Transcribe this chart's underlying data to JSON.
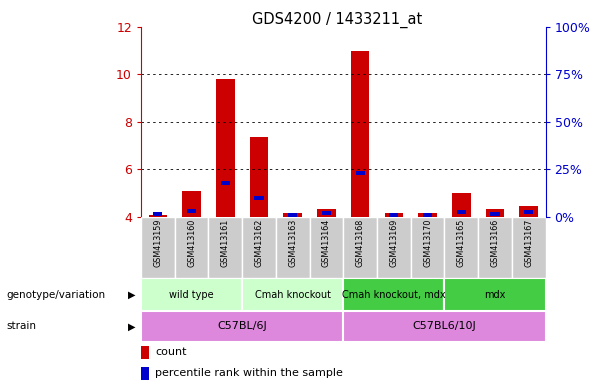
{
  "title": "GDS4200 / 1433211_at",
  "samples": [
    "GSM413159",
    "GSM413160",
    "GSM413161",
    "GSM413162",
    "GSM413163",
    "GSM413164",
    "GSM413168",
    "GSM413169",
    "GSM413170",
    "GSM413165",
    "GSM413166",
    "GSM413167"
  ],
  "count_values": [
    4.1,
    5.1,
    9.8,
    7.35,
    4.15,
    4.35,
    11.0,
    4.15,
    4.15,
    5.0,
    4.35,
    4.45
  ],
  "percentile_values": [
    1.5,
    3.0,
    18.0,
    10.0,
    1.0,
    2.0,
    23.0,
    1.0,
    1.0,
    2.5,
    1.5,
    2.5
  ],
  "ylim_left": [
    4,
    12
  ],
  "ylim_right": [
    0,
    100
  ],
  "yticks_left": [
    4,
    6,
    8,
    10,
    12
  ],
  "yticks_right": [
    0,
    25,
    50,
    75,
    100
  ],
  "ytick_labels_right": [
    "0%",
    "25%",
    "50%",
    "75%",
    "100%"
  ],
  "count_color": "#cc0000",
  "percentile_color": "#0000cc",
  "groups": [
    {
      "label": "wild type",
      "start": 0,
      "end": 3,
      "color": "#ccffcc"
    },
    {
      "label": "Cmah knockout",
      "start": 3,
      "end": 6,
      "color": "#ccffcc"
    },
    {
      "label": "Cmah knockout, mdx",
      "start": 6,
      "end": 9,
      "color": "#44cc44"
    },
    {
      "label": "mdx",
      "start": 9,
      "end": 12,
      "color": "#44cc44"
    }
  ],
  "strains": [
    {
      "label": "C57BL/6J",
      "start": 0,
      "end": 6,
      "color": "#dd88dd"
    },
    {
      "label": "C57BL6/10J",
      "start": 6,
      "end": 12,
      "color": "#dd88dd"
    }
  ],
  "genotype_label": "genotype/variation",
  "strain_label": "strain",
  "legend_count": "count",
  "legend_percentile": "percentile rank within the sample",
  "axis_color_left": "#cc0000",
  "axis_color_right": "#0000cc",
  "sample_bg_color": "#cccccc"
}
